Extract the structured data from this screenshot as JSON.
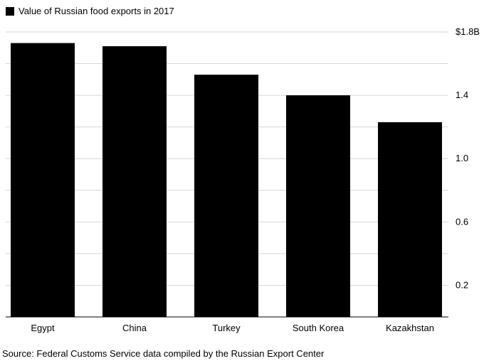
{
  "legend": {
    "label": "Value of Russian food exports in 2017"
  },
  "source": "Source: Federal Customs Service data compiled by the Russian Export Center",
  "colors": {
    "bar": "#000000",
    "grid": "#d6d6d6",
    "axis": "#000000",
    "text": "#000000"
  },
  "chart_data": {
    "type": "bar",
    "categories": [
      "Egypt",
      "China",
      "Turkey",
      "South Korea",
      "Kazakhstan"
    ],
    "series": [
      {
        "name": "Value of Russian food exports in 2017",
        "values": [
          1.73,
          1.71,
          1.53,
          1.4,
          1.23
        ]
      }
    ],
    "ylim": [
      0,
      1.8
    ],
    "yticks": [
      0.2,
      0.4,
      0.6,
      0.8,
      1.0,
      1.2,
      1.4,
      1.6,
      1.8
    ],
    "ytick_labels": [
      "0.2",
      "",
      "0.6",
      "",
      "1.0",
      "",
      "1.4",
      "",
      "$1.8B"
    ],
    "y_axis_position": "right",
    "grid": true,
    "legend_position": "top-left",
    "xlabel": "",
    "ylabel": ""
  }
}
